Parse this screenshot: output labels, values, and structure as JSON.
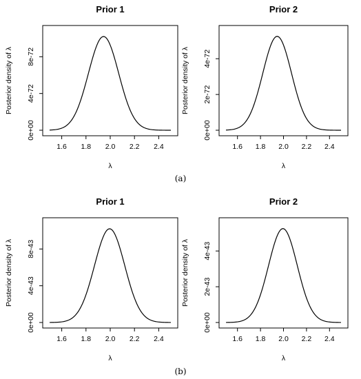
{
  "panel_labels": [
    "(a)",
    "(b)"
  ],
  "chart_data": [
    {
      "type": "line",
      "panel": "(a)",
      "title": "Prior 1",
      "xlabel": "λ",
      "ylabel": "Posterior density of  λ",
      "xlim": [
        1.5,
        2.5
      ],
      "ylim": [
        0,
        1.08e-71
      ],
      "xticks": [
        1.6,
        1.8,
        2.0,
        2.2,
        2.4
      ],
      "xtick_labels": [
        "1.6",
        "1.8",
        "2.0",
        "2.2",
        "2.4"
      ],
      "yticks": [
        0,
        4e-72,
        8e-72
      ],
      "ytick_labels": [
        "0e+00",
        "4e-72",
        "8e-72"
      ],
      "curve": {
        "mean": 1.945,
        "sd": 0.125,
        "peak": 1.02e-71
      }
    },
    {
      "type": "line",
      "panel": "(a)",
      "title": "Prior 2",
      "xlabel": "λ",
      "ylabel": "Posterior density of  λ",
      "xlim": [
        1.5,
        2.5
      ],
      "ylim": [
        0,
        5.55e-72
      ],
      "xticks": [
        1.6,
        1.8,
        2.0,
        2.2,
        2.4
      ],
      "xtick_labels": [
        "1.6",
        "1.8",
        "2.0",
        "2.2",
        "2.4"
      ],
      "yticks": [
        0,
        2e-72,
        4e-72
      ],
      "ytick_labels": [
        "0e+00",
        "2e-72",
        "4e-72"
      ],
      "curve": {
        "mean": 1.945,
        "sd": 0.125,
        "peak": 5.25e-72
      }
    },
    {
      "type": "line",
      "panel": "(b)",
      "title": "Prior 1",
      "xlabel": "λ",
      "ylabel": "Posterior density of  λ",
      "xlim": [
        1.5,
        2.5
      ],
      "ylim": [
        0,
        1.08e-42
      ],
      "xticks": [
        1.6,
        1.8,
        2.0,
        2.2,
        2.4
      ],
      "xtick_labels": [
        "1.6",
        "1.8",
        "2.0",
        "2.2",
        "2.4"
      ],
      "yticks": [
        0,
        4e-43,
        8e-43
      ],
      "ytick_labels": [
        "0e+00",
        "4e-43",
        "8e-43"
      ],
      "curve": {
        "mean": 1.995,
        "sd": 0.125,
        "peak": 1.02e-42
      }
    },
    {
      "type": "line",
      "panel": "(b)",
      "title": "Prior 2",
      "xlabel": "λ",
      "ylabel": "Posterior density of  λ",
      "xlim": [
        1.5,
        2.5
      ],
      "ylim": [
        0,
        5.55e-43
      ],
      "xticks": [
        1.6,
        1.8,
        2.0,
        2.2,
        2.4
      ],
      "xtick_labels": [
        "1.6",
        "1.8",
        "2.0",
        "2.2",
        "2.4"
      ],
      "yticks": [
        0,
        2e-43,
        4e-43
      ],
      "ytick_labels": [
        "0e+00",
        "2e-43",
        "4e-43"
      ],
      "curve": {
        "mean": 1.995,
        "sd": 0.125,
        "peak": 5.25e-43
      }
    }
  ]
}
